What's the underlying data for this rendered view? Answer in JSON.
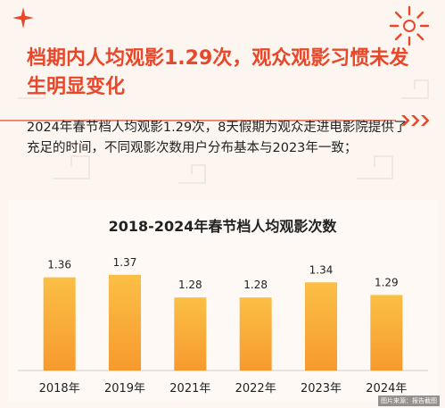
{
  "title": "档期内人均观影1.29次，观众观影习惯未发生明显变化",
  "description": "2024年春节档人均观影1.29次，8天假期为观众走进电影院提供了充足的时间，不同观影次数用户分布基本与2023年一致；",
  "caption": "图片来源：报告截图",
  "icons": [
    "sparkle-icon",
    "sun-ornament-icon",
    "chevron-arrows-icon"
  ],
  "colors": {
    "accent": "#e8472a",
    "bar_top": "#fbbf45",
    "bar_bottom": "#f79a2e",
    "background": "#fdf6f0"
  },
  "chart_data": {
    "type": "bar",
    "title": "2018-2024年春节档人均观影次数",
    "categories": [
      "2018年",
      "2019年",
      "2021年",
      "2022年",
      "2023年",
      "2024年"
    ],
    "values": [
      1.36,
      1.37,
      1.28,
      1.28,
      1.34,
      1.29
    ],
    "value_labels": [
      "1.36",
      "1.37",
      "1.28",
      "1.28",
      "1.34",
      "1.29"
    ],
    "ylim": [
      0.99,
      1.38
    ],
    "grid": false,
    "legend": "none"
  }
}
